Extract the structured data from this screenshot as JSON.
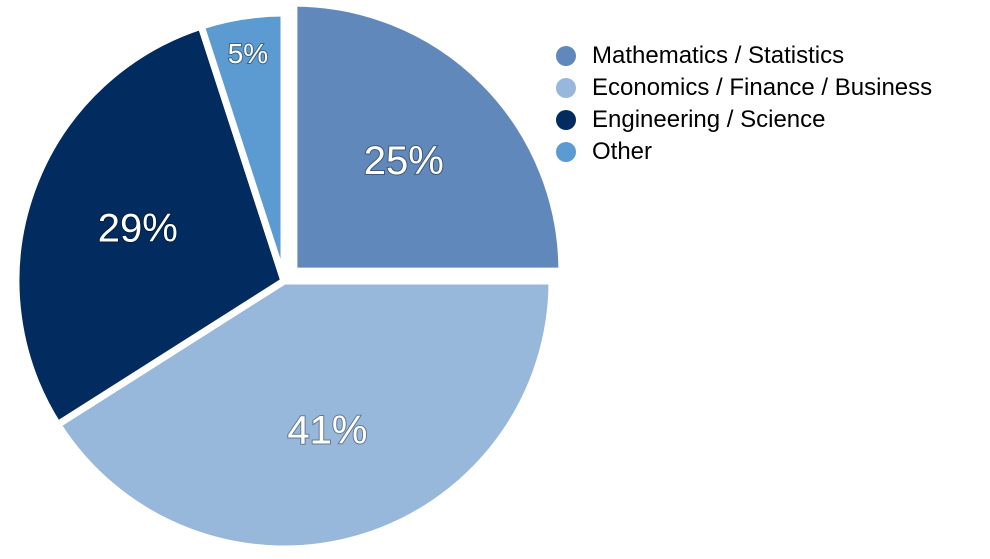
{
  "chart_data": {
    "type": "pie",
    "start_angle_deg": 0,
    "direction": "clockwise",
    "legend_position": "top-right",
    "slices": [
      {
        "name": "Mathematics / Statistics",
        "label": "25%",
        "value": 25,
        "color": "#6088bb",
        "exploded": true
      },
      {
        "name": "Economics / Finance / Business",
        "label": "41%",
        "value": 41,
        "color": "#97b8db",
        "exploded": false
      },
      {
        "name": "Engineering / Science",
        "label": "29%",
        "value": 29,
        "color": "#022c60",
        "exploded": false
      },
      {
        "name": "Other",
        "label": "5%",
        "value": 5,
        "color": "#5c9ad2",
        "exploded": false
      }
    ]
  }
}
